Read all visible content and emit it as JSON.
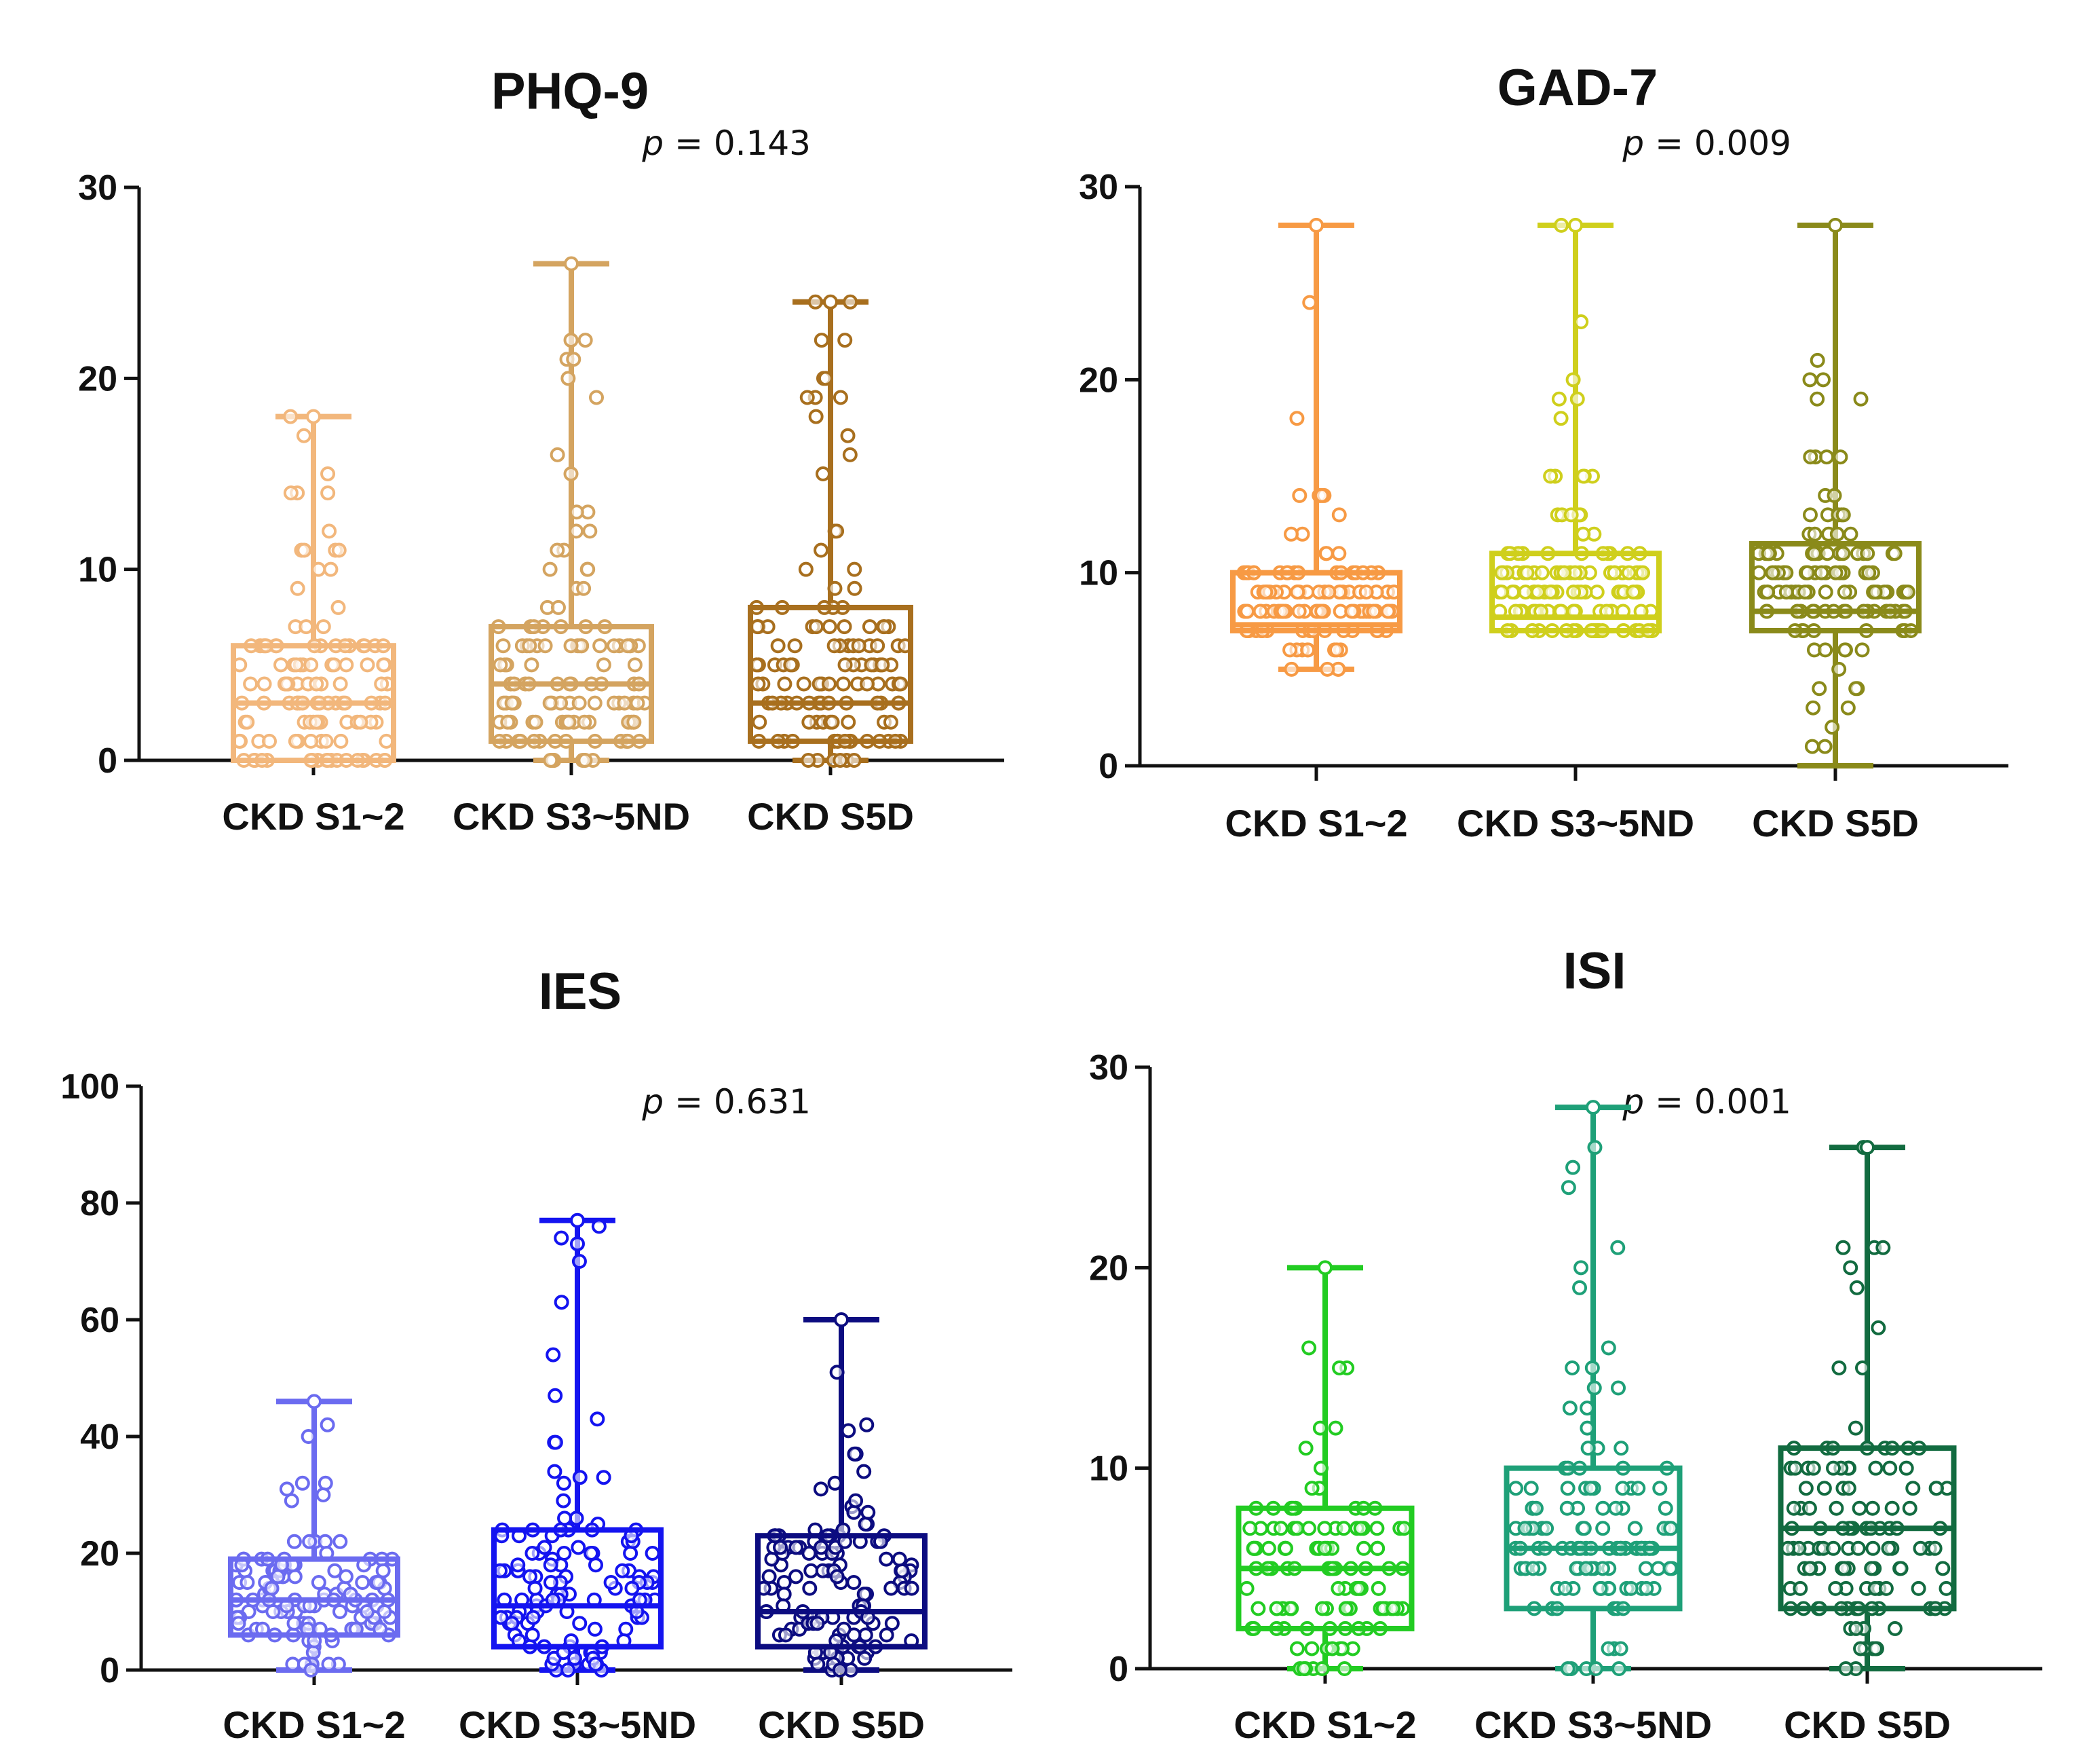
{
  "chart_data": [
    {
      "type": "box",
      "title": "PHQ-9",
      "p_value_label": "p",
      "p_value_text": " = 0.143",
      "ylim": [
        0,
        30
      ],
      "yticks": [
        "0",
        "10",
        "20",
        "30"
      ],
      "categories": [
        "CKD S1~2",
        "CKD S3~5ND",
        "CKD S5D"
      ],
      "colors": [
        "#f2b77c",
        "#d4a460",
        "#a86f1e"
      ],
      "boxes": [
        {
          "min": 0,
          "q1": 0,
          "median": 3,
          "q3": 6,
          "max": 18
        },
        {
          "min": 0,
          "q1": 1,
          "median": 4,
          "q3": 7,
          "max": 26
        },
        {
          "min": 0,
          "q1": 1,
          "median": 3,
          "q3": 8,
          "max": 24
        }
      ]
    },
    {
      "type": "box",
      "title": "GAD-7",
      "p_value_label": "p",
      "p_value_text": " = 0.009",
      "ylim": [
        0,
        30
      ],
      "yticks": [
        "0",
        "10",
        "20",
        "30"
      ],
      "categories": [
        "CKD S1~2",
        "CKD S3~5ND",
        "CKD S5D"
      ],
      "colors": [
        "#f79a44",
        "#cfcf1c",
        "#8a8a1a"
      ],
      "boxes": [
        {
          "min": 5,
          "q1": 7,
          "median": 7.3,
          "q3": 10,
          "max": 28
        },
        {
          "min": 7,
          "q1": 7,
          "median": 7.7,
          "q3": 11,
          "max": 28
        },
        {
          "min": 0,
          "q1": 7,
          "median": 8,
          "q3": 11.5,
          "max": 28
        }
      ]
    },
    {
      "type": "box",
      "title": "IES",
      "p_value_label": "p",
      "p_value_text": " = 0.631",
      "ylim": [
        0,
        100
      ],
      "yticks": [
        "0",
        "20",
        "40",
        "60",
        "80",
        "100"
      ],
      "categories": [
        "CKD S1~2",
        "CKD S3~5ND",
        "CKD S5D"
      ],
      "colors": [
        "#6b6bf0",
        "#1414f0",
        "#0c0c80"
      ],
      "boxes": [
        {
          "min": 0,
          "q1": 6,
          "median": 12,
          "q3": 19,
          "max": 46
        },
        {
          "min": 0,
          "q1": 4,
          "median": 11,
          "q3": 24,
          "max": 77
        },
        {
          "min": 0,
          "q1": 4,
          "median": 10,
          "q3": 23,
          "max": 60
        }
      ]
    },
    {
      "type": "box",
      "title": "ISI",
      "p_value_label": "p",
      "p_value_text": " = 0.001",
      "ylim": [
        0,
        30
      ],
      "yticks": [
        "0",
        "10",
        "20",
        "30"
      ],
      "categories": [
        "CKD S1~2",
        "CKD S3~5ND",
        "CKD S5D"
      ],
      "colors": [
        "#22cc22",
        "#1ea078",
        "#126b40"
      ],
      "boxes": [
        {
          "min": 0,
          "q1": 2,
          "median": 5,
          "q3": 8,
          "max": 20
        },
        {
          "min": 0,
          "q1": 3,
          "median": 6,
          "q3": 10,
          "max": 28
        },
        {
          "min": 0,
          "q1": 3,
          "median": 7,
          "q3": 11,
          "max": 26
        }
      ]
    }
  ]
}
